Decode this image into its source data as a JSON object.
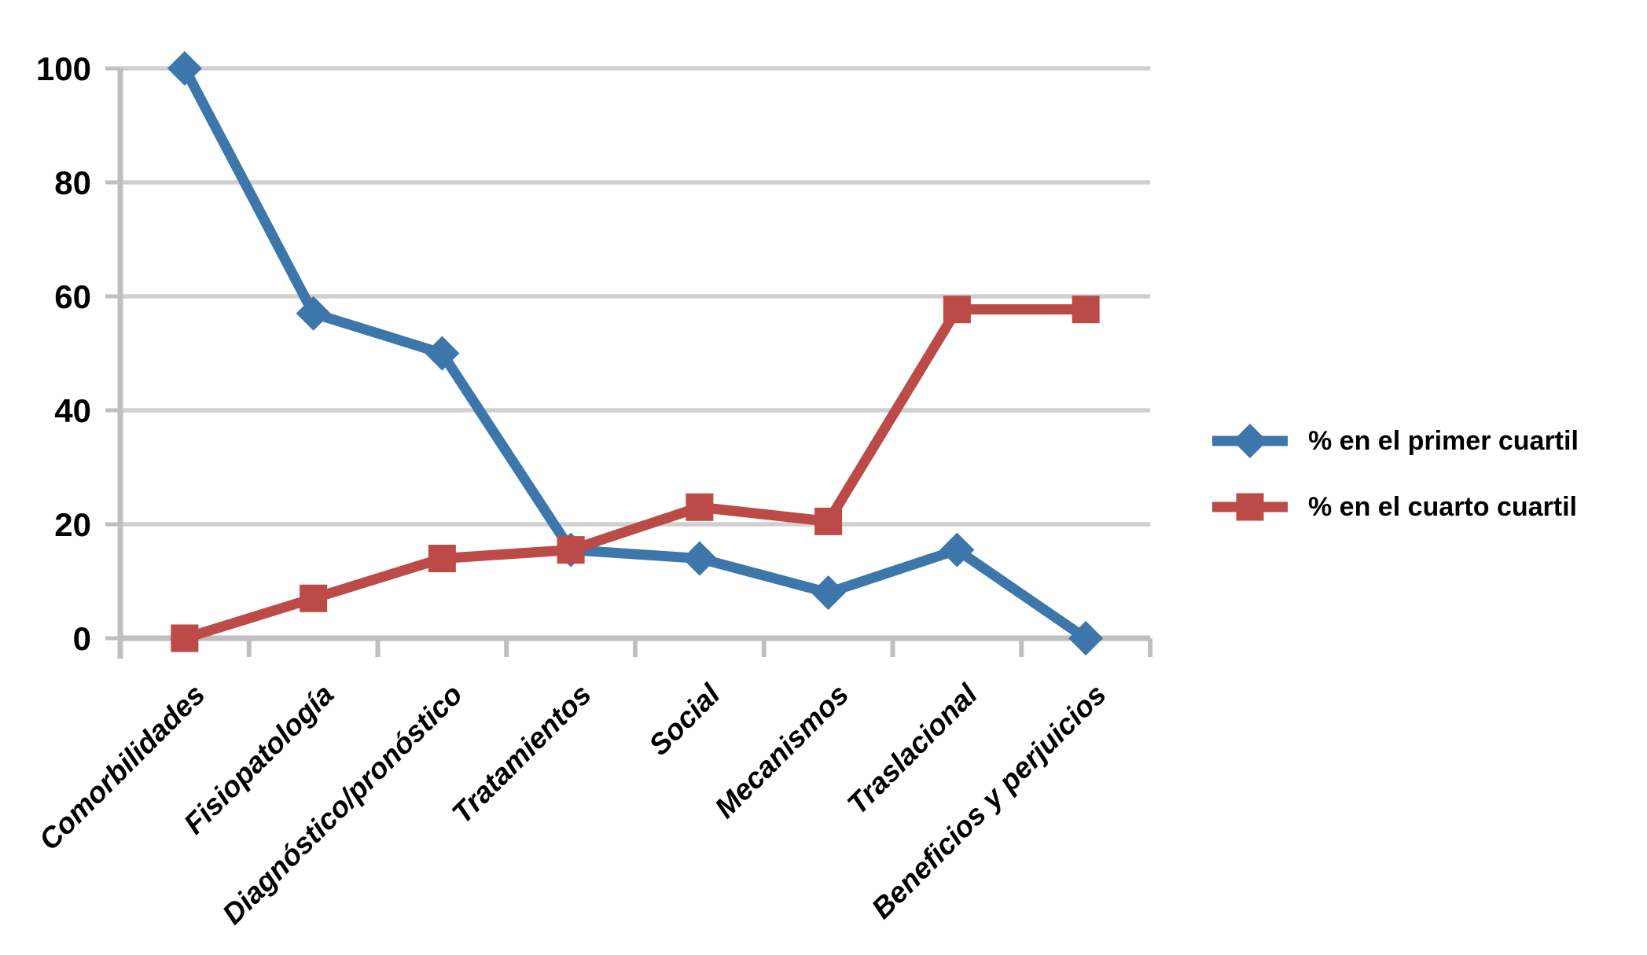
{
  "chart_data": {
    "type": "line",
    "categories": [
      "Comorbilidades",
      "Fisiopatología",
      "Diagnóstico/pronóstico",
      "Tratamientos",
      "Social",
      "Mecanismos",
      "Traslacional",
      "Beneficios y perjuicios"
    ],
    "series": [
      {
        "name": "% en el primer cuartil",
        "marker": "diamond",
        "color": "#3C76AA",
        "values": [
          100,
          57,
          50,
          15.5,
          14,
          8,
          15.5,
          0
        ]
      },
      {
        "name": "% en el cuarto cuartil",
        "marker": "square",
        "color": "#BC4B48",
        "values": [
          0,
          7,
          14,
          15.5,
          23,
          20.5,
          57.7,
          57.7
        ]
      }
    ],
    "title": "",
    "xlabel": "",
    "ylabel": "",
    "ylim": [
      0,
      100
    ],
    "yticks": [
      0,
      20,
      40,
      60,
      80,
      100
    ],
    "grid": "horizontal",
    "legend_position": "right-middle",
    "colors": {
      "grid": "#D0D0D0",
      "axis": "#BFBFBF",
      "text": "#000000",
      "background": "#FFFFFF"
    }
  },
  "legend": {
    "items": [
      {
        "label": "% en el primer cuartil",
        "marker": "diamond-icon",
        "color": "#3C76AA"
      },
      {
        "label": "% en el cuarto cuartil",
        "marker": "square-icon",
        "color": "#BC4B48"
      }
    ]
  }
}
